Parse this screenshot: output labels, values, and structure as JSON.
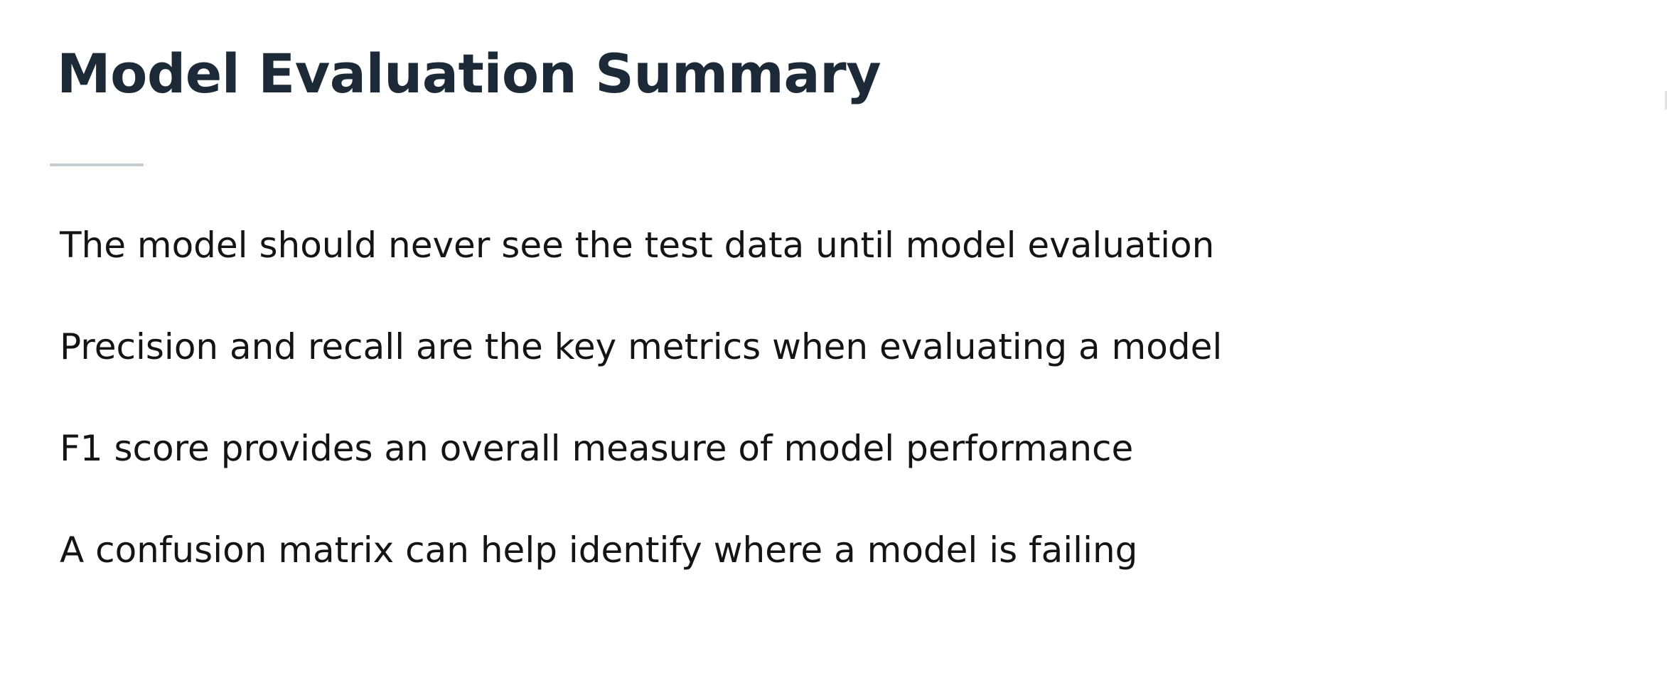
{
  "slide": {
    "title": "Model Evaluation Summary",
    "bullets": [
      "The model should never see the test data until model evaluation",
      "Precision and recall are the key metrics when evaluating a model",
      "F1 score provides an overall measure of model performance",
      "A confusion matrix can help identify where a model is failing"
    ]
  },
  "colors": {
    "title": "#1c2a38",
    "body_text": "#141414",
    "rule": "#c6cbd0",
    "background": "#ffffff"
  }
}
